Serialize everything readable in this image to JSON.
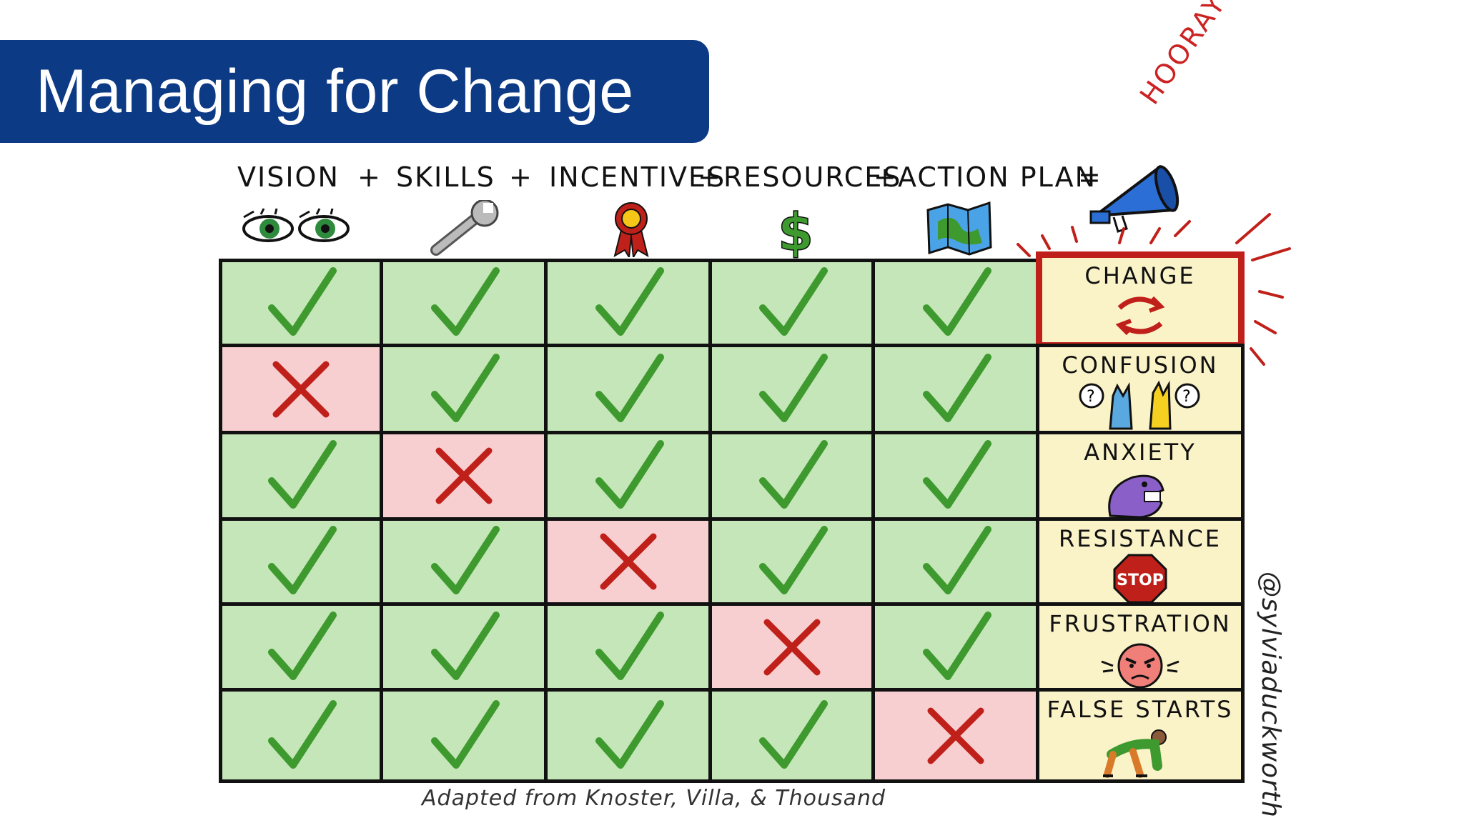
{
  "title": "Managing for Change",
  "formula": {
    "vision": "VISION",
    "skills": "SKILLS",
    "incentives": "INCENTIVES",
    "resources": "RESOURCES",
    "action_plan": "ACTION PLAN",
    "plus": "+",
    "equals": "="
  },
  "hooray": "HOORAY!!!",
  "outcomes": [
    "CHANGE",
    "CONFUSION",
    "ANXIETY",
    "RESISTANCE",
    "FRUSTRATION",
    "FALSE STARTS"
  ],
  "stop_sign": "STOP",
  "rows": [
    [
      "check",
      "check",
      "check",
      "check",
      "check"
    ],
    [
      "cross",
      "check",
      "check",
      "check",
      "check"
    ],
    [
      "check",
      "cross",
      "check",
      "check",
      "check"
    ],
    [
      "check",
      "check",
      "cross",
      "check",
      "check"
    ],
    [
      "check",
      "check",
      "check",
      "cross",
      "check"
    ],
    [
      "check",
      "check",
      "check",
      "check",
      "cross"
    ]
  ],
  "credit": "Adapted from Knoster, Villa, & Thousand",
  "author_handle": "@sylviaduckworth",
  "colors": {
    "title_bg": "#0d3a85",
    "ok_cell": "#c5e6b8",
    "bad_cell": "#f8cfd0",
    "outcome_cell": "#fbf3c8",
    "check": "#3e9a2f",
    "cross": "#c0201a",
    "highlight": "#c0201a"
  },
  "icons": [
    "eyes-icon",
    "wrench-icon",
    "ribbon-icon",
    "dollar-icon",
    "map-icon",
    "megaphone-icon"
  ]
}
